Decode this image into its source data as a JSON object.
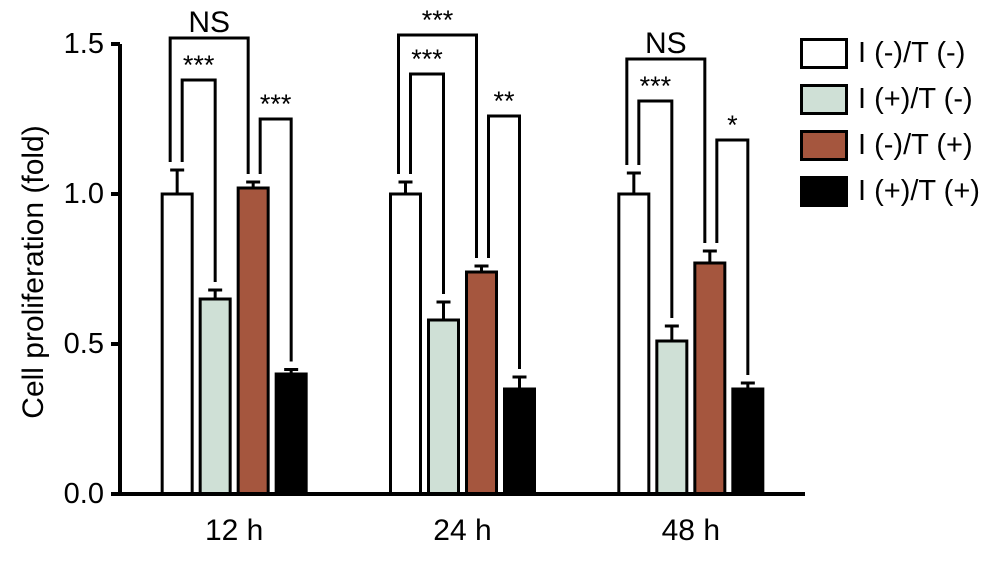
{
  "chart_data": {
    "type": "bar",
    "title": "",
    "xlabel": "",
    "ylabel": "Cell proliferation (fold)",
    "ylim": [
      0,
      1.5
    ],
    "yticks": [
      0.0,
      0.5,
      1.0,
      1.5
    ],
    "ytick_labels": [
      "0.0",
      "0.5",
      "1.0",
      "1.5"
    ],
    "categories": [
      "12 h",
      "24 h",
      "48 h"
    ],
    "series": [
      {
        "name": "I (-)/T (-)",
        "color": "#ffffff",
        "values": [
          1.0,
          1.0,
          1.0
        ],
        "errors": [
          0.08,
          0.04,
          0.07
        ]
      },
      {
        "name": "I (+)/T (-)",
        "color": "#cfe0d6",
        "values": [
          0.65,
          0.58,
          0.51
        ],
        "errors": [
          0.03,
          0.06,
          0.05
        ]
      },
      {
        "name": "I (-)/T (+)",
        "color": "#a5563e",
        "values": [
          1.02,
          0.74,
          0.77
        ],
        "errors": [
          0.02,
          0.02,
          0.04
        ]
      },
      {
        "name": "I (+)/T (+)",
        "color": "#000000",
        "values": [
          0.4,
          0.35,
          0.35
        ],
        "errors": [
          0.015,
          0.04,
          0.02
        ]
      }
    ],
    "grid": false,
    "legend_position": "right",
    "significance": [
      {
        "group": 0,
        "from": 0,
        "to": 1,
        "label": "***",
        "level": 1.38
      },
      {
        "group": 0,
        "from": 0,
        "to": 2,
        "label": "NS",
        "level": 1.52
      },
      {
        "group": 0,
        "from": 2,
        "to": 3,
        "label": "***",
        "level": 1.25
      },
      {
        "group": 1,
        "from": 0,
        "to": 1,
        "label": "***",
        "level": 1.4
      },
      {
        "group": 1,
        "from": 0,
        "to": 2,
        "label": "***",
        "level": 1.53
      },
      {
        "group": 1,
        "from": 2,
        "to": 3,
        "label": "**",
        "level": 1.26
      },
      {
        "group": 2,
        "from": 0,
        "to": 1,
        "label": "***",
        "level": 1.31
      },
      {
        "group": 2,
        "from": 0,
        "to": 2,
        "label": "NS",
        "level": 1.45
      },
      {
        "group": 2,
        "from": 2,
        "to": 3,
        "label": "*",
        "level": 1.18
      }
    ]
  }
}
